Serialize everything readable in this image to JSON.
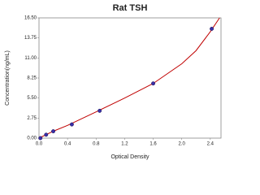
{
  "chart_data": {
    "type": "scatter",
    "title": "Rat TSH",
    "x_label": "Optical Density",
    "y_label": "Concentration(ng/mL)",
    "x": [
      0.02,
      0.1,
      0.2,
      0.46,
      0.85,
      1.6,
      2.42
    ],
    "values": [
      0,
      0.47,
      0.94,
      1.88,
      3.75,
      7.5,
      15
    ],
    "color": "#3a2fa8",
    "curve": {
      "x": [
        0,
        0.2,
        0.4,
        0.8,
        1.2,
        1.6,
        2.0,
        2.2,
        2.4,
        2.53
      ],
      "y": [
        0,
        0.95,
        1.75,
        3.6,
        5.5,
        7.5,
        10.2,
        12.0,
        14.6,
        16.5
      ],
      "color": "#c00000"
    },
    "xlim": [
      0,
      2.55
    ],
    "ylim": [
      0,
      16.5
    ],
    "xticks": [
      {
        "value": 0,
        "label": "0.0"
      },
      0.4,
      0.8,
      1.2,
      1.6,
      {
        "value": 2,
        "label": "2.0"
      },
      2.4
    ],
    "yticks": [
      {
        "value": 0,
        "label": "0.00"
      },
      2.75,
      {
        "value": 5.5,
        "label": "5.50"
      },
      8.25,
      {
        "value": 11,
        "label": "11.00"
      },
      13.75,
      {
        "value": 16.5,
        "label": "16.50"
      }
    ],
    "grid": false
  }
}
